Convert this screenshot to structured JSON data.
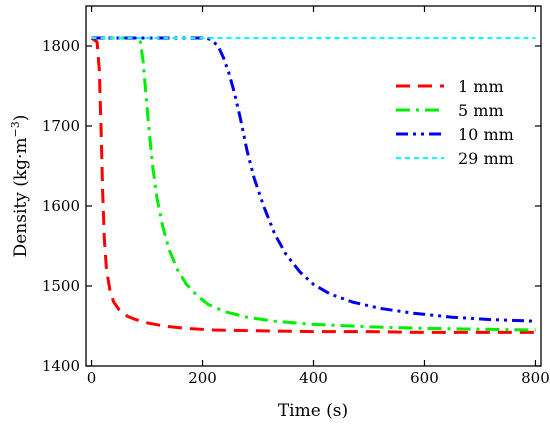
{
  "chart_data": {
    "type": "line",
    "title": "",
    "xlabel": "Time (s)",
    "ylabel": {
      "prefix": "Density (kg·m",
      "sup": "−3",
      "suffix": ")"
    },
    "xlim": [
      -10,
      810
    ],
    "ylim": [
      1400,
      1850
    ],
    "x_ticks": [
      0,
      200,
      400,
      600,
      800
    ],
    "y_ticks": [
      1400,
      1500,
      1600,
      1700,
      1800
    ],
    "grid": false,
    "legend_position": "right-middle",
    "series": [
      {
        "name": "1 mm",
        "color": "#ff0000",
        "dash": "dashed",
        "points": [
          [
            0,
            1810
          ],
          [
            10,
            1805
          ],
          [
            14,
            1770
          ],
          [
            17,
            1700
          ],
          [
            20,
            1620
          ],
          [
            23,
            1560
          ],
          [
            27,
            1520
          ],
          [
            33,
            1495
          ],
          [
            40,
            1480
          ],
          [
            50,
            1470
          ],
          [
            65,
            1462
          ],
          [
            80,
            1458
          ],
          [
            100,
            1454
          ],
          [
            130,
            1450
          ],
          [
            170,
            1447
          ],
          [
            220,
            1445
          ],
          [
            300,
            1444
          ],
          [
            400,
            1443
          ],
          [
            500,
            1443
          ],
          [
            600,
            1442
          ],
          [
            700,
            1442
          ],
          [
            800,
            1442
          ]
        ]
      },
      {
        "name": "5 mm",
        "color": "#00ee00",
        "dash": "dashdot",
        "points": [
          [
            0,
            1810
          ],
          [
            80,
            1810
          ],
          [
            88,
            1805
          ],
          [
            93,
            1780
          ],
          [
            98,
            1740
          ],
          [
            103,
            1700
          ],
          [
            110,
            1650
          ],
          [
            118,
            1610
          ],
          [
            128,
            1575
          ],
          [
            140,
            1545
          ],
          [
            155,
            1520
          ],
          [
            170,
            1503
          ],
          [
            190,
            1488
          ],
          [
            210,
            1477
          ],
          [
            240,
            1468
          ],
          [
            280,
            1461
          ],
          [
            330,
            1456
          ],
          [
            400,
            1452
          ],
          [
            500,
            1449
          ],
          [
            600,
            1447
          ],
          [
            700,
            1446
          ],
          [
            800,
            1445
          ]
        ]
      },
      {
        "name": "10 mm",
        "color": "#0000ee",
        "dash": "dashdotdot",
        "points": [
          [
            0,
            1810
          ],
          [
            205,
            1810
          ],
          [
            215,
            1808
          ],
          [
            228,
            1800
          ],
          [
            238,
            1785
          ],
          [
            248,
            1765
          ],
          [
            258,
            1740
          ],
          [
            268,
            1710
          ],
          [
            280,
            1670
          ],
          [
            293,
            1635
          ],
          [
            310,
            1600
          ],
          [
            330,
            1565
          ],
          [
            350,
            1540
          ],
          [
            375,
            1518
          ],
          [
            400,
            1502
          ],
          [
            430,
            1490
          ],
          [
            470,
            1480
          ],
          [
            520,
            1472
          ],
          [
            580,
            1466
          ],
          [
            650,
            1461
          ],
          [
            720,
            1458
          ],
          [
            800,
            1456
          ]
        ]
      },
      {
        "name": "29 mm",
        "color": "#00ffff",
        "dash": "shortdash",
        "points": [
          [
            0,
            1810
          ],
          [
            800,
            1810
          ]
        ]
      }
    ]
  }
}
